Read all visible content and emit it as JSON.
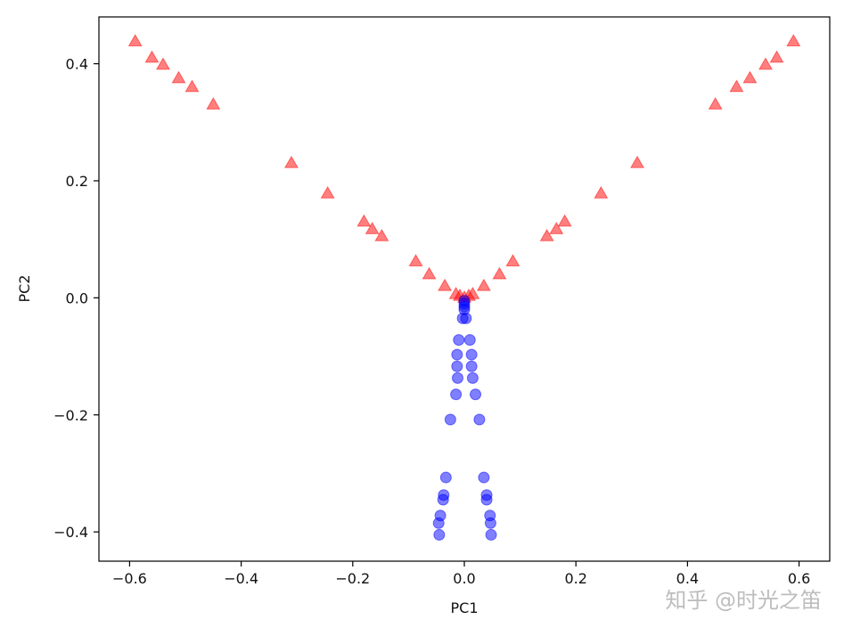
{
  "chart_data": {
    "type": "scatter",
    "title": "",
    "xlabel": "PC1",
    "ylabel": "PC2",
    "xlim": [
      -0.655,
      0.655
    ],
    "ylim": [
      -0.45,
      0.48
    ],
    "xticks": [
      -0.6,
      -0.4,
      -0.2,
      0.0,
      0.2,
      0.4,
      0.6
    ],
    "yticks": [
      -0.4,
      -0.2,
      0.0,
      0.2,
      0.4
    ],
    "xtick_labels": [
      "−0.6",
      "−0.4",
      "−0.2",
      "0.0",
      "0.2",
      "0.4",
      "0.6"
    ],
    "ytick_labels": [
      "−0.4",
      "−0.2",
      "0.0",
      "0.2",
      "0.4"
    ],
    "grid": false,
    "legend": "none",
    "series": [
      {
        "marker": "triangle",
        "color": "#ff0000",
        "points": [
          {
            "x": -0.59,
            "y": 0.438
          },
          {
            "x": -0.56,
            "y": 0.41
          },
          {
            "x": -0.54,
            "y": 0.398
          },
          {
            "x": -0.512,
            "y": 0.375
          },
          {
            "x": -0.488,
            "y": 0.36
          },
          {
            "x": -0.45,
            "y": 0.33
          },
          {
            "x": -0.31,
            "y": 0.23
          },
          {
            "x": -0.245,
            "y": 0.178
          },
          {
            "x": -0.18,
            "y": 0.13
          },
          {
            "x": -0.165,
            "y": 0.117
          },
          {
            "x": -0.148,
            "y": 0.105
          },
          {
            "x": -0.087,
            "y": 0.062
          },
          {
            "x": -0.063,
            "y": 0.04
          },
          {
            "x": -0.035,
            "y": 0.02
          },
          {
            "x": -0.015,
            "y": 0.006
          },
          {
            "x": -0.008,
            "y": 0.003
          },
          {
            "x": 0.0,
            "y": 0.0
          },
          {
            "x": 0.008,
            "y": 0.003
          },
          {
            "x": 0.015,
            "y": 0.006
          },
          {
            "x": 0.035,
            "y": 0.02
          },
          {
            "x": 0.063,
            "y": 0.04
          },
          {
            "x": 0.087,
            "y": 0.062
          },
          {
            "x": 0.148,
            "y": 0.105
          },
          {
            "x": 0.165,
            "y": 0.117
          },
          {
            "x": 0.18,
            "y": 0.13
          },
          {
            "x": 0.245,
            "y": 0.178
          },
          {
            "x": 0.31,
            "y": 0.23
          },
          {
            "x": 0.45,
            "y": 0.33
          },
          {
            "x": 0.488,
            "y": 0.36
          },
          {
            "x": 0.512,
            "y": 0.375
          },
          {
            "x": 0.54,
            "y": 0.398
          },
          {
            "x": 0.56,
            "y": 0.41
          },
          {
            "x": 0.59,
            "y": 0.438
          }
        ]
      },
      {
        "marker": "circle",
        "color": "#0000ff",
        "points": [
          {
            "x": 0.0,
            "y": -0.005
          },
          {
            "x": 0.0,
            "y": -0.01
          },
          {
            "x": 0.0,
            "y": -0.015
          },
          {
            "x": 0.0,
            "y": -0.02
          },
          {
            "x": -0.003,
            "y": -0.035
          },
          {
            "x": 0.003,
            "y": -0.035
          },
          {
            "x": -0.01,
            "y": -0.072
          },
          {
            "x": 0.01,
            "y": -0.072
          },
          {
            "x": -0.013,
            "y": -0.097
          },
          {
            "x": 0.013,
            "y": -0.097
          },
          {
            "x": -0.013,
            "y": -0.117
          },
          {
            "x": 0.013,
            "y": -0.117
          },
          {
            "x": -0.012,
            "y": -0.137
          },
          {
            "x": 0.015,
            "y": -0.137
          },
          {
            "x": -0.015,
            "y": -0.165
          },
          {
            "x": 0.02,
            "y": -0.165
          },
          {
            "x": -0.025,
            "y": -0.208
          },
          {
            "x": 0.027,
            "y": -0.208
          },
          {
            "x": -0.033,
            "y": -0.307
          },
          {
            "x": 0.035,
            "y": -0.307
          },
          {
            "x": -0.037,
            "y": -0.337
          },
          {
            "x": 0.04,
            "y": -0.337
          },
          {
            "x": -0.038,
            "y": -0.345
          },
          {
            "x": 0.04,
            "y": -0.345
          },
          {
            "x": -0.043,
            "y": -0.372
          },
          {
            "x": 0.046,
            "y": -0.372
          },
          {
            "x": -0.046,
            "y": -0.385
          },
          {
            "x": 0.047,
            "y": -0.385
          },
          {
            "x": -0.045,
            "y": -0.405
          },
          {
            "x": 0.048,
            "y": -0.405
          }
        ]
      }
    ]
  },
  "watermark": {
    "text": "知乎 @时光之笛"
  }
}
